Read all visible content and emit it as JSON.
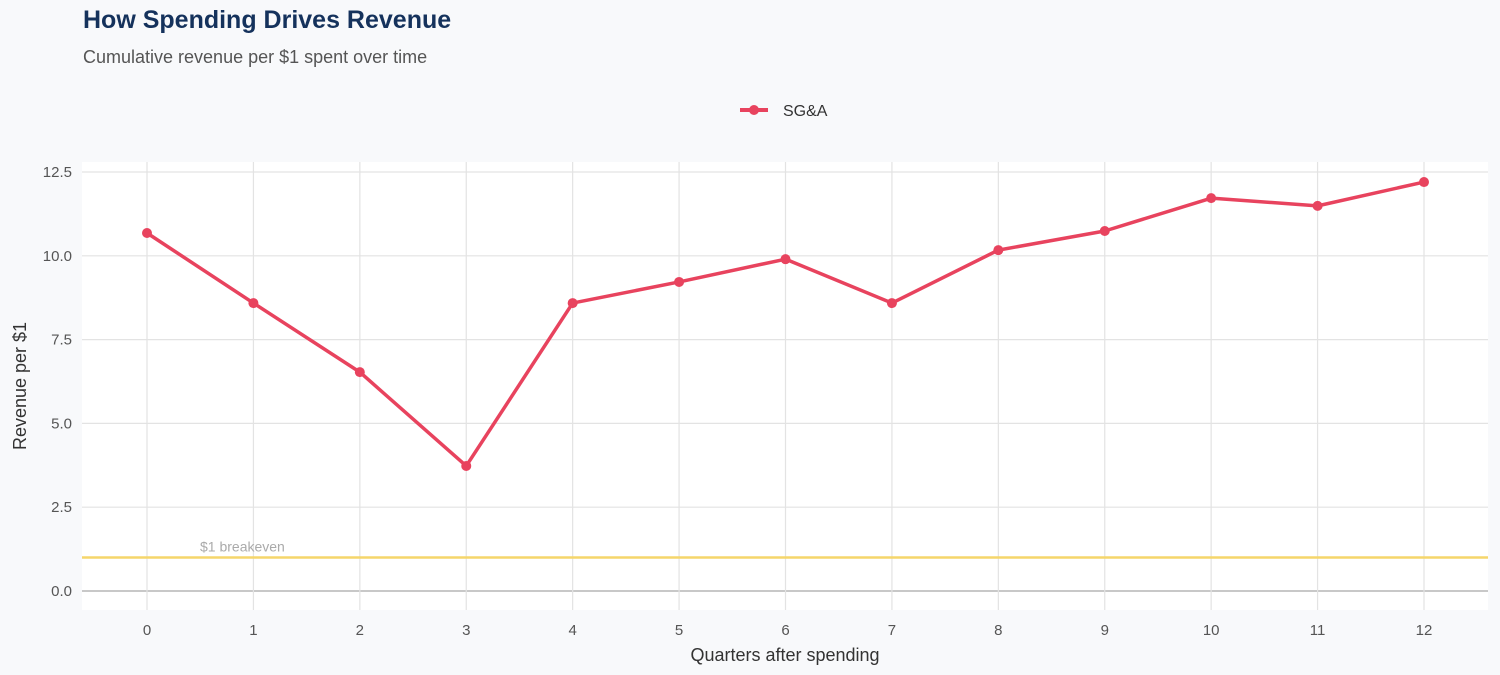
{
  "chart_data": {
    "type": "line",
    "title": "How Spending Drives Revenue",
    "subtitle": "Cumulative revenue per $1 spent over time",
    "xlabel": "Quarters after spending",
    "ylabel": "Revenue per $1",
    "x": [
      0,
      1,
      2,
      3,
      4,
      5,
      6,
      7,
      8,
      9,
      10,
      11,
      12
    ],
    "series": [
      {
        "name": "SG&A",
        "color": "#e8435e",
        "values": [
          10.68,
          8.59,
          6.53,
          3.73,
          8.59,
          9.22,
          9.9,
          8.59,
          10.17,
          10.74,
          11.72,
          11.49,
          12.2
        ]
      }
    ],
    "xlim": [
      -0.6,
      12.6
    ],
    "ylim": [
      -0.6,
      12.8
    ],
    "yticks": [
      0,
      2.5,
      5,
      7.5,
      10,
      12.5
    ],
    "ytick_labels": [
      "0.0",
      "2.5",
      "5.0",
      "7.5",
      "10.0",
      "12.5"
    ],
    "xtick_labels": [
      "0",
      "1",
      "2",
      "3",
      "4",
      "5",
      "6",
      "7",
      "8",
      "9",
      "10",
      "11",
      "12"
    ],
    "grid": true,
    "legend": "top-center",
    "reference_line": {
      "y": 1,
      "label": "$1 breakeven",
      "color": "#f5d66b"
    }
  }
}
